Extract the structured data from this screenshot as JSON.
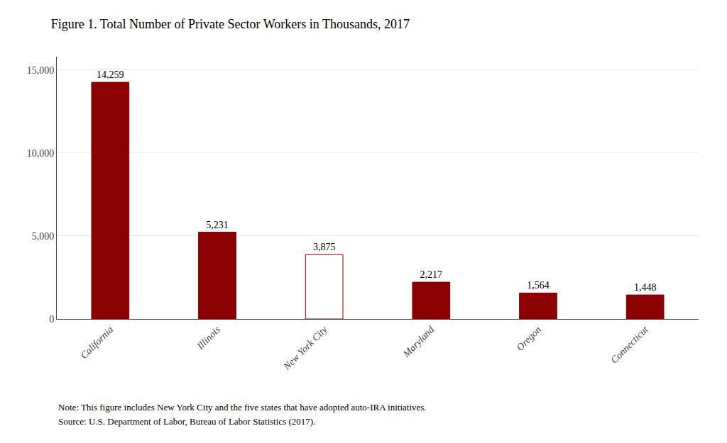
{
  "chart_data": {
    "type": "bar",
    "title": "Figure 1. Total Number of Private Sector Workers in Thousands, 2017",
    "categories": [
      "California",
      "Illinois",
      "New York City",
      "Maryland",
      "Oregon",
      "Connecticut"
    ],
    "values": [
      14259,
      5231,
      3875,
      2217,
      1564,
      1448
    ],
    "value_labels": [
      "14,259",
      "5,231",
      "3,875",
      "2,217",
      "1,564",
      "1,448"
    ],
    "data_labels": true,
    "color": "#8B0000",
    "colors": [
      "#8B0000",
      "#8B0000",
      "white",
      "#8B0000",
      "#8B0000",
      "#8B0000"
    ],
    "ylim": [
      0,
      15800
    ],
    "yticks": [
      0,
      {
        "value": 5000,
        "label": "5,000"
      },
      {
        "value": 10000,
        "label": "10,000"
      },
      {
        "value": 15000,
        "label": "15,000"
      }
    ],
    "grid": true,
    "annotations": [
      "Note: This figure includes New York City and the five states that have adopted auto-IRA initiatives.",
      "Source: U.S. Department of Labor, Bureau of Labor Statistics (2017)."
    ]
  }
}
